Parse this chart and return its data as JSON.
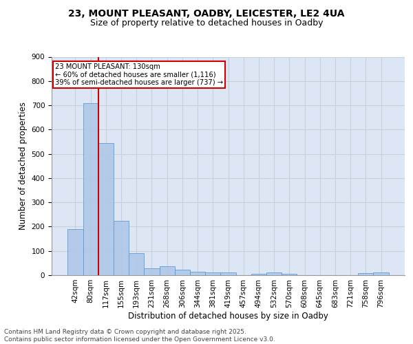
{
  "title_line1": "23, MOUNT PLEASANT, OADBY, LEICESTER, LE2 4UA",
  "title_line2": "Size of property relative to detached houses in Oadby",
  "xlabel": "Distribution of detached houses by size in Oadby",
  "ylabel": "Number of detached properties",
  "categories": [
    "42sqm",
    "80sqm",
    "117sqm",
    "155sqm",
    "193sqm",
    "231sqm",
    "268sqm",
    "306sqm",
    "344sqm",
    "381sqm",
    "419sqm",
    "457sqm",
    "494sqm",
    "532sqm",
    "570sqm",
    "608sqm",
    "645sqm",
    "683sqm",
    "721sqm",
    "758sqm",
    "796sqm"
  ],
  "values": [
    190,
    710,
    543,
    224,
    91,
    27,
    37,
    24,
    13,
    11,
    12,
    0,
    7,
    11,
    6,
    0,
    0,
    0,
    0,
    8,
    12
  ],
  "bar_color": "#aec6e8",
  "bar_edge_color": "#5b9bd5",
  "bar_alpha": 0.85,
  "vline_x_index": 2,
  "vline_color": "#cc0000",
  "annotation_text": "23 MOUNT PLEASANT: 130sqm\n← 60% of detached houses are smaller (1,116)\n39% of semi-detached houses are larger (737) →",
  "annotation_box_color": "#cc0000",
  "ylim": [
    0,
    900
  ],
  "yticks": [
    0,
    100,
    200,
    300,
    400,
    500,
    600,
    700,
    800,
    900
  ],
  "grid_color": "#c8d0dc",
  "background_color": "#dce6f5",
  "footer_line1": "Contains HM Land Registry data © Crown copyright and database right 2025.",
  "footer_line2": "Contains public sector information licensed under the Open Government Licence v3.0.",
  "title_fontsize": 10,
  "subtitle_fontsize": 9,
  "axis_label_fontsize": 8.5,
  "tick_fontsize": 7.5,
  "footer_fontsize": 6.5
}
